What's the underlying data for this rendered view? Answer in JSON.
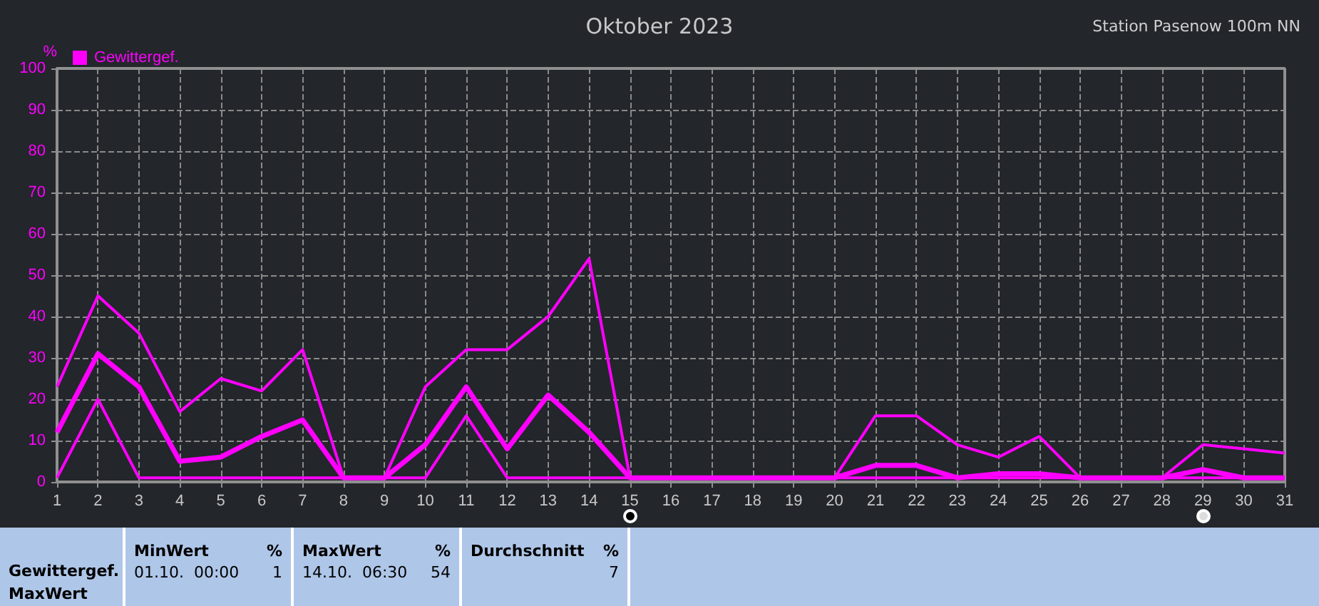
{
  "chart_data": {
    "type": "line",
    "title": "Oktober 2023",
    "subtitle": "Station Pasenow 100m NN",
    "ylabel": "%",
    "x": [
      1,
      2,
      3,
      4,
      5,
      6,
      7,
      8,
      9,
      10,
      11,
      12,
      13,
      14,
      15,
      16,
      17,
      18,
      19,
      20,
      21,
      22,
      23,
      24,
      25,
      26,
      27,
      28,
      29,
      30,
      31
    ],
    "series": [
      {
        "name": "Gewittergef.",
        "color": "#ff00ff",
        "values": [
          23,
          45,
          36,
          17,
          25,
          22,
          32,
          1,
          1,
          23,
          32,
          32,
          40,
          54,
          1,
          1,
          1,
          1,
          1,
          1,
          16,
          16,
          9,
          6,
          11,
          1,
          1,
          1,
          9,
          8,
          7
        ]
      },
      {
        "color": "#ff00ff",
        "values": [
          12,
          31,
          23,
          5,
          6,
          11,
          15,
          1,
          1,
          9,
          23,
          8,
          21,
          12,
          1,
          1,
          1,
          1,
          1,
          1,
          4,
          4,
          1,
          2,
          2,
          1,
          1,
          1,
          3,
          1,
          1
        ]
      },
      {
        "color": "#ff00ff",
        "values": [
          1,
          20,
          1,
          1,
          1,
          1,
          1,
          1,
          1,
          1,
          16,
          1,
          1,
          1,
          1,
          1,
          1,
          1,
          1,
          1,
          1,
          1,
          1,
          1,
          1,
          1,
          1,
          1,
          1,
          1,
          1
        ]
      }
    ],
    "xlim": [
      1,
      31
    ],
    "xticks": [
      1,
      2,
      3,
      4,
      5,
      6,
      7,
      8,
      9,
      10,
      11,
      12,
      13,
      14,
      15,
      16,
      17,
      18,
      19,
      20,
      21,
      22,
      23,
      24,
      25,
      26,
      27,
      28,
      29,
      30,
      31
    ],
    "ylim": [
      0,
      100
    ],
    "yticks": [
      0,
      10,
      20,
      30,
      40,
      50,
      60,
      70,
      80,
      90,
      100
    ],
    "grid": true,
    "legend": "top left",
    "marker": "none",
    "annotations": [
      "Gewittergef.",
      "MaxWert",
      "MinWert",
      "%",
      "01.10.  00:00",
      "1",
      "MaxWert",
      "%",
      "14.10.  06:30",
      "54",
      "Durchschnitt",
      "%",
      "7"
    ]
  }
}
